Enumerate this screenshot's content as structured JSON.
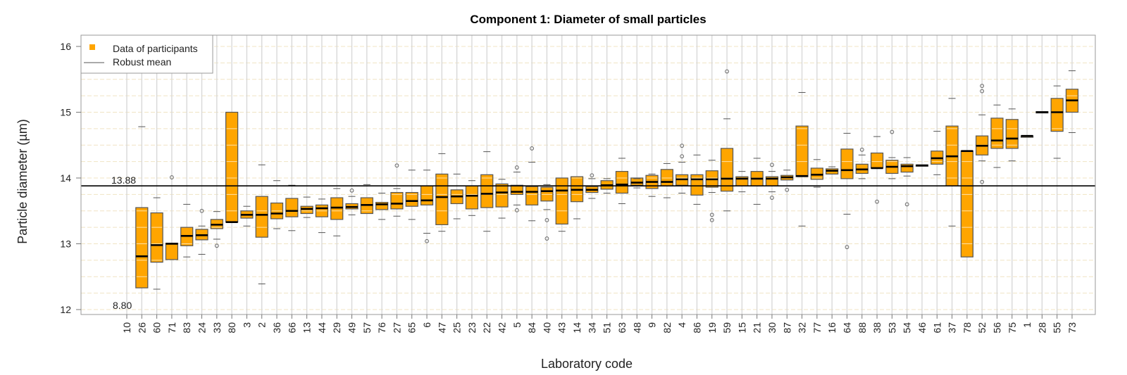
{
  "chart_data": {
    "type": "box",
    "title": "Component 1: Diameter of small particles",
    "xlabel": "Laboratory code",
    "ylabel": "Particle diameter (µm)",
    "ylim": [
      11.9,
      16.15
    ],
    "yticks": [
      12,
      13,
      14,
      15,
      16
    ],
    "minor_gridlines_step": 0.25,
    "grid": true,
    "legend": {
      "placement": "top-left",
      "entries": [
        {
          "label": "Data of participants",
          "symbol": "square",
          "color": "#FFA500"
        },
        {
          "label": "Robust mean",
          "symbol": "line",
          "color": "#555555"
        }
      ]
    },
    "reference_line": {
      "name": "Robust mean",
      "value": 13.88,
      "label": "13.88"
    },
    "annotations": [
      {
        "text": "8.80",
        "note": "off-scale value for lab 10"
      }
    ],
    "colors": {
      "box_fill": "#FFA500",
      "box_stroke": "#555555",
      "median": "#000000",
      "grid_major": "#d4d4d4",
      "grid_minor": "#f2e6c8"
    },
    "categories": [
      "10",
      "26",
      "60",
      "71",
      "83",
      "24",
      "33",
      "80",
      "3",
      "2",
      "36",
      "66",
      "13",
      "44",
      "29",
      "49",
      "57",
      "76",
      "27",
      "65",
      "6",
      "47",
      "25",
      "23",
      "22",
      "42",
      "5",
      "84",
      "40",
      "43",
      "14",
      "34",
      "51",
      "63",
      "48",
      "9",
      "82",
      "4",
      "86",
      "19",
      "59",
      "15",
      "21",
      "30",
      "87",
      "32",
      "77",
      "16",
      "64",
      "88",
      "38",
      "53",
      "54",
      "46",
      "61",
      "37",
      "78",
      "52",
      "56",
      "75",
      "1",
      "28",
      "55",
      "73"
    ],
    "boxes": [
      {
        "lab": "10",
        "q1": null,
        "median": null,
        "q3": null,
        "lo": null,
        "hi": null,
        "outliers": []
      },
      {
        "lab": "26",
        "q1": 12.33,
        "median": 12.81,
        "q3": 13.55,
        "lo": null,
        "hi": 14.78,
        "outliers": []
      },
      {
        "lab": "60",
        "q1": 12.72,
        "median": 12.98,
        "q3": 13.47,
        "lo": 12.31,
        "hi": 13.7,
        "outliers": []
      },
      {
        "lab": "71",
        "q1": 12.76,
        "median": 13.0,
        "q3": 13.01,
        "lo": null,
        "hi": null,
        "outliers": [
          14.01
        ]
      },
      {
        "lab": "83",
        "q1": 12.97,
        "median": 13.12,
        "q3": 13.25,
        "lo": 12.8,
        "hi": 13.6,
        "outliers": []
      },
      {
        "lab": "24",
        "q1": 13.06,
        "median": 13.13,
        "q3": 13.22,
        "lo": 12.84,
        "hi": 13.27,
        "outliers": [
          13.5
        ]
      },
      {
        "lab": "33",
        "q1": 13.23,
        "median": 13.29,
        "q3": 13.37,
        "lo": 13.07,
        "hi": 13.49,
        "outliers": [
          12.97
        ]
      },
      {
        "lab": "80",
        "q1": 13.33,
        "median": 13.33,
        "q3": 15.0,
        "lo": null,
        "hi": null,
        "outliers": []
      },
      {
        "lab": "3",
        "q1": 13.39,
        "median": 13.44,
        "q3": 13.5,
        "lo": 13.27,
        "hi": 13.57,
        "outliers": []
      },
      {
        "lab": "2",
        "q1": 13.1,
        "median": 13.44,
        "q3": 13.72,
        "lo": 12.39,
        "hi": 14.2,
        "outliers": []
      },
      {
        "lab": "36",
        "q1": 13.38,
        "median": 13.46,
        "q3": 13.62,
        "lo": 13.23,
        "hi": 13.96,
        "outliers": []
      },
      {
        "lab": "66",
        "q1": 13.41,
        "median": 13.5,
        "q3": 13.69,
        "lo": 13.2,
        "hi": 13.89,
        "outliers": []
      },
      {
        "lab": "13",
        "q1": 13.46,
        "median": 13.53,
        "q3": 13.57,
        "lo": 13.4,
        "hi": 13.71,
        "outliers": []
      },
      {
        "lab": "44",
        "q1": 13.41,
        "median": 13.54,
        "q3": 13.59,
        "lo": 13.17,
        "hi": 13.68,
        "outliers": []
      },
      {
        "lab": "29",
        "q1": 13.37,
        "median": 13.55,
        "q3": 13.7,
        "lo": 13.12,
        "hi": 13.84,
        "outliers": []
      },
      {
        "lab": "49",
        "q1": 13.53,
        "median": 13.56,
        "q3": 13.61,
        "lo": 13.44,
        "hi": 13.72,
        "outliers": [
          13.81
        ]
      },
      {
        "lab": "57",
        "q1": 13.46,
        "median": 13.59,
        "q3": 13.7,
        "lo": null,
        "hi": 13.9,
        "outliers": []
      },
      {
        "lab": "76",
        "q1": 13.52,
        "median": 13.6,
        "q3": 13.63,
        "lo": 13.37,
        "hi": 13.77,
        "outliers": []
      },
      {
        "lab": "27",
        "q1": 13.53,
        "median": 13.61,
        "q3": 13.78,
        "lo": 13.42,
        "hi": 13.84,
        "outliers": [
          14.19
        ]
      },
      {
        "lab": "65",
        "q1": 13.57,
        "median": 13.65,
        "q3": 13.78,
        "lo": 13.37,
        "hi": 14.12,
        "outliers": []
      },
      {
        "lab": "6",
        "q1": 13.59,
        "median": 13.66,
        "q3": 13.88,
        "lo": 13.16,
        "hi": 14.12,
        "outliers": [
          13.04
        ]
      },
      {
        "lab": "47",
        "q1": 13.29,
        "median": 13.71,
        "q3": 14.06,
        "lo": 13.19,
        "hi": 14.37,
        "outliers": []
      },
      {
        "lab": "25",
        "q1": 13.61,
        "median": 13.72,
        "q3": 13.82,
        "lo": 13.38,
        "hi": 14.06,
        "outliers": []
      },
      {
        "lab": "23",
        "q1": 13.53,
        "median": 13.73,
        "q3": 13.88,
        "lo": 13.43,
        "hi": 13.96,
        "outliers": []
      },
      {
        "lab": "22",
        "q1": 13.55,
        "median": 13.76,
        "q3": 14.05,
        "lo": 13.19,
        "hi": 14.4,
        "outliers": []
      },
      {
        "lab": "42",
        "q1": 13.56,
        "median": 13.78,
        "q3": 13.91,
        "lo": 13.39,
        "hi": 13.98,
        "outliers": []
      },
      {
        "lab": "5",
        "q1": 13.75,
        "median": 13.79,
        "q3": 13.89,
        "lo": 13.59,
        "hi": 14.09,
        "outliers": [
          14.16,
          13.51
        ]
      },
      {
        "lab": "84",
        "q1": 13.59,
        "median": 13.79,
        "q3": 13.87,
        "lo": 13.35,
        "hi": 14.24,
        "outliers": [
          14.45
        ]
      },
      {
        "lab": "40",
        "q1": 13.65,
        "median": 13.8,
        "q3": 13.86,
        "lo": 13.52,
        "hi": 13.9,
        "outliers": [
          13.36,
          13.08
        ]
      },
      {
        "lab": "43",
        "q1": 13.3,
        "median": 13.81,
        "q3": 14.0,
        "lo": 13.19,
        "hi": null,
        "outliers": []
      },
      {
        "lab": "14",
        "q1": 13.64,
        "median": 13.82,
        "q3": 14.02,
        "lo": 13.38,
        "hi": null,
        "outliers": []
      },
      {
        "lab": "34",
        "q1": 13.78,
        "median": 13.82,
        "q3": 13.87,
        "lo": 13.69,
        "hi": 13.99,
        "outliers": [
          14.04
        ]
      },
      {
        "lab": "51",
        "q1": 13.83,
        "median": 13.89,
        "q3": 13.96,
        "lo": 13.77,
        "hi": 13.99,
        "outliers": []
      },
      {
        "lab": "63",
        "q1": 13.77,
        "median": 13.9,
        "q3": 14.1,
        "lo": 13.61,
        "hi": 14.3,
        "outliers": []
      },
      {
        "lab": "48",
        "q1": 13.89,
        "median": 13.93,
        "q3": 14.0,
        "lo": 13.85,
        "hi": 13.99,
        "outliers": []
      },
      {
        "lab": "9",
        "q1": 13.84,
        "median": 13.94,
        "q3": 14.04,
        "lo": 13.72,
        "hi": 14.06,
        "outliers": []
      },
      {
        "lab": "82",
        "q1": 13.88,
        "median": 13.94,
        "q3": 14.13,
        "lo": 13.7,
        "hi": 14.22,
        "outliers": []
      },
      {
        "lab": "4",
        "q1": 13.89,
        "median": 13.98,
        "q3": 14.05,
        "lo": 13.77,
        "hi": 14.24,
        "outliers": [
          14.49,
          14.33
        ]
      },
      {
        "lab": "86",
        "q1": 13.74,
        "median": 13.98,
        "q3": 14.05,
        "lo": 13.6,
        "hi": 14.35,
        "outliers": []
      },
      {
        "lab": "19",
        "q1": 13.86,
        "median": 13.98,
        "q3": 14.11,
        "lo": 13.78,
        "hi": 14.27,
        "outliers": [
          13.44,
          13.36
        ]
      },
      {
        "lab": "59",
        "q1": 13.8,
        "median": 13.99,
        "q3": 14.45,
        "lo": 13.5,
        "hi": 14.9,
        "outliers": [
          15.62
        ]
      },
      {
        "lab": "15",
        "q1": 13.88,
        "median": 13.99,
        "q3": 14.02,
        "lo": 13.79,
        "hi": 14.1,
        "outliers": []
      },
      {
        "lab": "21",
        "q1": 13.88,
        "median": 13.99,
        "q3": 14.1,
        "lo": 13.6,
        "hi": 14.3,
        "outliers": []
      },
      {
        "lab": "30",
        "q1": 13.88,
        "median": 13.99,
        "q3": 14.02,
        "lo": 13.79,
        "hi": 14.1,
        "outliers": [
          14.2,
          13.7
        ]
      },
      {
        "lab": "87",
        "q1": 13.97,
        "median": 14.01,
        "q3": 14.04,
        "lo": null,
        "hi": 14.12,
        "outliers": [
          13.82
        ]
      },
      {
        "lab": "32",
        "q1": 14.02,
        "median": 14.03,
        "q3": 14.79,
        "lo": 13.27,
        "hi": 15.3,
        "outliers": []
      },
      {
        "lab": "77",
        "q1": 13.98,
        "median": 14.05,
        "q3": 14.15,
        "lo": 13.86,
        "hi": 14.28,
        "outliers": []
      },
      {
        "lab": "16",
        "q1": 14.06,
        "median": 14.11,
        "q3": 14.14,
        "lo": null,
        "hi": 14.17,
        "outliers": []
      },
      {
        "lab": "64",
        "q1": 13.99,
        "median": 14.12,
        "q3": 14.44,
        "lo": 13.45,
        "hi": 14.68,
        "outliers": [
          12.95
        ]
      },
      {
        "lab": "88",
        "q1": 14.07,
        "median": 14.13,
        "q3": 14.21,
        "lo": 13.99,
        "hi": 14.35,
        "outliers": [
          14.43
        ]
      },
      {
        "lab": "38",
        "q1": 14.15,
        "median": 14.15,
        "q3": 14.38,
        "lo": null,
        "hi": 14.63,
        "outliers": [
          13.64
        ]
      },
      {
        "lab": "53",
        "q1": 14.07,
        "median": 14.17,
        "q3": 14.27,
        "lo": 13.99,
        "hi": 14.31,
        "outliers": [
          14.7
        ]
      },
      {
        "lab": "54",
        "q1": 14.09,
        "median": 14.18,
        "q3": 14.21,
        "lo": 14.03,
        "hi": 14.31,
        "outliers": [
          13.6
        ]
      },
      {
        "lab": "46",
        "q1": 14.18,
        "median": 14.19,
        "q3": 14.2,
        "lo": null,
        "hi": null,
        "outliers": []
      },
      {
        "lab": "61",
        "q1": 14.21,
        "median": 14.3,
        "q3": 14.41,
        "lo": 14.05,
        "hi": 14.71,
        "outliers": []
      },
      {
        "lab": "37",
        "q1": 13.88,
        "median": 14.33,
        "q3": 14.79,
        "lo": 13.27,
        "hi": 15.21,
        "outliers": []
      },
      {
        "lab": "78",
        "q1": 12.8,
        "median": 14.41,
        "q3": 14.41,
        "lo": null,
        "hi": null,
        "outliers": []
      },
      {
        "lab": "52",
        "q1": 14.35,
        "median": 14.49,
        "q3": 14.64,
        "lo": 14.26,
        "hi": 14.96,
        "outliers": [
          15.4,
          15.32,
          13.94
        ]
      },
      {
        "lab": "56",
        "q1": 14.45,
        "median": 14.57,
        "q3": 14.91,
        "lo": 14.16,
        "hi": 15.11,
        "outliers": []
      },
      {
        "lab": "75",
        "q1": 14.45,
        "median": 14.6,
        "q3": 14.89,
        "lo": 14.26,
        "hi": 15.05,
        "outliers": []
      },
      {
        "lab": "1",
        "q1": 14.64,
        "median": 14.64,
        "q3": 14.64,
        "lo": null,
        "hi": null,
        "outliers": []
      },
      {
        "lab": "28",
        "q1": 14.99,
        "median": 15.0,
        "q3": 15.01,
        "lo": null,
        "hi": null,
        "outliers": []
      },
      {
        "lab": "55",
        "q1": 14.71,
        "median": 15.0,
        "q3": 15.21,
        "lo": 14.3,
        "hi": 15.4,
        "outliers": []
      },
      {
        "lab": "73",
        "q1": 15.0,
        "median": 15.18,
        "q3": 15.35,
        "lo": 14.69,
        "hi": 15.63,
        "outliers": []
      }
    ]
  }
}
